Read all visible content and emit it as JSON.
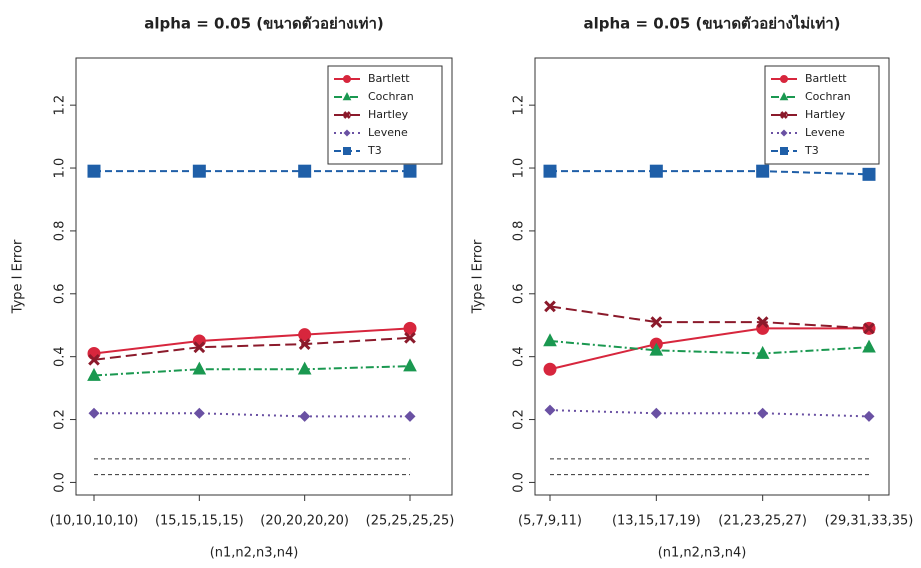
{
  "chart_data": [
    {
      "type": "line",
      "title": "alpha = 0.05 (ขนาดตัวอย่างเท่า)",
      "xlabel": "(n1,n2,n3,n4)",
      "ylabel": "Type I Error",
      "categories": [
        "(10,10,10,10)",
        "(15,15,15,15)",
        "(20,20,20,20)",
        "(25,25,25,25)"
      ],
      "ylim": [
        -0.04,
        1.35
      ],
      "yticks": [
        {
          "value": 0,
          "label": "0.0"
        },
        0.2,
        0.4,
        0.6,
        0.8,
        {
          "value": 1,
          "label": "1.0"
        },
        1.2
      ],
      "reference_lines": [
        0.075,
        0.025
      ],
      "legend": "top-right",
      "series": [
        {
          "name": "Bartlett",
          "color": "#d7263d",
          "marker": "circle",
          "linestyle": "solid",
          "values": [
            0.41,
            0.45,
            0.47,
            0.49
          ]
        },
        {
          "name": "Cochran",
          "color": "#1a9850",
          "marker": "triangle",
          "linestyle": "dashdot",
          "values": [
            0.34,
            0.36,
            0.36,
            0.37
          ]
        },
        {
          "name": "Hartley",
          "color": "#8b1a2b",
          "marker": "cross",
          "linestyle": "longdash",
          "values": [
            0.39,
            0.43,
            0.44,
            0.46
          ]
        },
        {
          "name": "Levene",
          "color": "#6a51a3",
          "marker": "diamond",
          "linestyle": "dotted",
          "values": [
            0.22,
            0.22,
            0.21,
            0.21
          ]
        },
        {
          "name": "T3",
          "color": "#1f5fa8",
          "marker": "square",
          "linestyle": "dashed",
          "values": [
            0.99,
            0.99,
            0.99,
            0.99
          ]
        }
      ]
    },
    {
      "type": "line",
      "title": "alpha = 0.05 (ขนาดตัวอย่างไม่เท่า)",
      "xlabel": "(n1,n2,n3,n4)",
      "ylabel": "Type I Error",
      "categories": [
        "(5,7,9,11)",
        "(13,15,17,19)",
        "(21,23,25,27)",
        "(29,31,33,35)"
      ],
      "ylim": [
        -0.04,
        1.35
      ],
      "yticks": [
        {
          "value": 0,
          "label": "0.0"
        },
        0.2,
        0.4,
        0.6,
        0.8,
        {
          "value": 1,
          "label": "1.0"
        },
        1.2
      ],
      "reference_lines": [
        0.075,
        0.025
      ],
      "legend": "top-right",
      "series": [
        {
          "name": "Bartlett",
          "color": "#d7263d",
          "marker": "circle",
          "linestyle": "solid",
          "values": [
            0.36,
            0.44,
            0.49,
            0.49
          ]
        },
        {
          "name": "Cochran",
          "color": "#1a9850",
          "marker": "triangle",
          "linestyle": "dashdot",
          "values": [
            0.45,
            0.42,
            0.41,
            0.43
          ]
        },
        {
          "name": "Hartley",
          "color": "#8b1a2b",
          "marker": "cross",
          "linestyle": "longdash",
          "values": [
            0.56,
            0.51,
            0.51,
            0.49
          ]
        },
        {
          "name": "Levene",
          "color": "#6a51a3",
          "marker": "diamond",
          "linestyle": "dotted",
          "values": [
            0.23,
            0.22,
            0.22,
            0.21
          ]
        },
        {
          "name": "T3",
          "color": "#1f5fa8",
          "marker": "square",
          "linestyle": "dashed",
          "values": [
            0.99,
            0.99,
            0.99,
            0.98
          ]
        }
      ]
    }
  ]
}
